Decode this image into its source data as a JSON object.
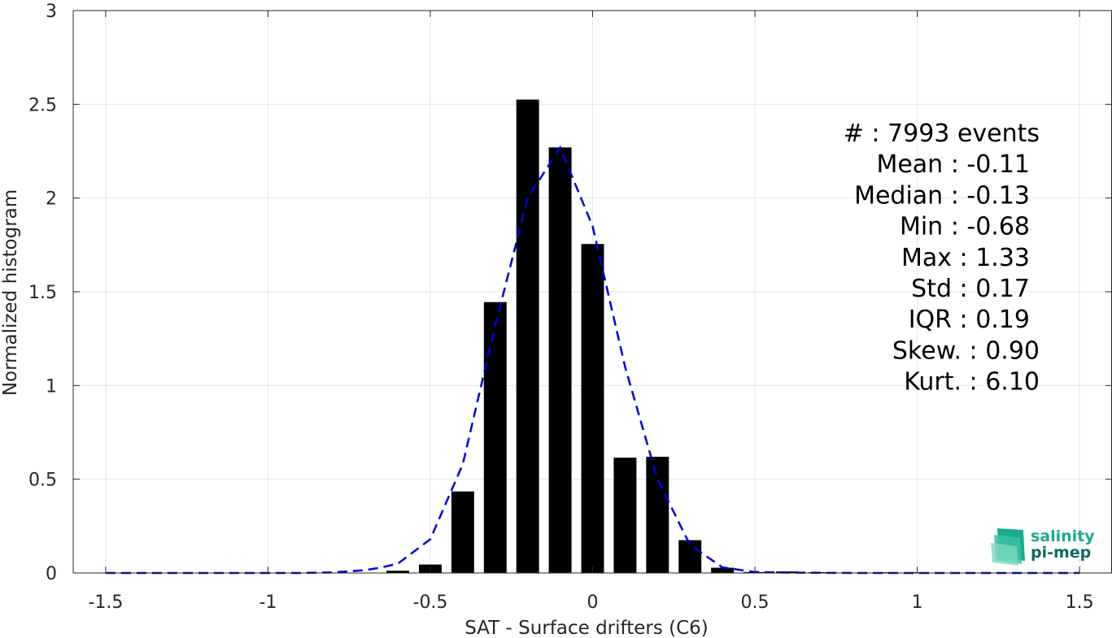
{
  "chart_data": {
    "type": "bar",
    "xlabel": "SAT - Surface drifters (C6)",
    "ylabel": "Normalized histogram",
    "xlim": [
      -1.6,
      1.6
    ],
    "ylim": [
      0,
      3
    ],
    "grid": true,
    "x_ticks": [
      -1.5,
      -1,
      -0.5,
      0,
      0.5,
      1,
      1.5
    ],
    "x_tick_labels": [
      "-1.5",
      "-1",
      "-0.5",
      "0",
      "0.5",
      "1",
      "1.5"
    ],
    "y_ticks": [
      0,
      0.5,
      1,
      1.5,
      2,
      2.5,
      3
    ],
    "y_tick_labels": [
      "0",
      "0.5",
      "1",
      "1.5",
      "2",
      "2.5",
      "3"
    ],
    "bar_width": 0.07,
    "series": [
      {
        "kind": "bar",
        "color": "#000000",
        "x": [
          -0.6,
          -0.5,
          -0.4,
          -0.3,
          -0.2,
          -0.1,
          0.0,
          0.1,
          0.2,
          0.3,
          0.4,
          0.5,
          0.6,
          0.7,
          0.8,
          0.9,
          1.0
        ],
        "values": [
          0.012,
          0.045,
          0.435,
          1.445,
          2.525,
          2.27,
          1.755,
          0.615,
          0.62,
          0.175,
          0.028,
          0.005,
          0.008,
          0.004,
          0.002,
          0.004,
          0.004
        ]
      },
      {
        "kind": "line",
        "style": "dashed",
        "color": "#0000dd",
        "x": [
          -1.5,
          -1.4,
          -1.3,
          -1.2,
          -1.1,
          -1.0,
          -0.9,
          -0.8,
          -0.7,
          -0.65,
          -0.6,
          -0.5,
          -0.4,
          -0.3,
          -0.2,
          -0.1,
          0.0,
          0.1,
          0.2,
          0.3,
          0.4,
          0.5,
          0.6,
          0.7,
          0.8,
          0.9,
          1.0,
          1.1,
          1.2,
          1.3,
          1.4,
          1.5
        ],
        "values": [
          0,
          0,
          0,
          0,
          0,
          0,
          0,
          0.003,
          0.015,
          0.03,
          0.05,
          0.18,
          0.58,
          1.32,
          2.0,
          2.27,
          1.85,
          1.1,
          0.5,
          0.15,
          0.03,
          0.005,
          0.002,
          0.001,
          0,
          0,
          0,
          0,
          0,
          0,
          0,
          0
        ]
      }
    ],
    "stats": [
      "#  : 7993 events",
      "Mean : -0.11",
      "Median : -0.13",
      "Min : -0.68",
      "Max : 1.33",
      "Std : 0.17",
      "IQR : 0.19",
      "Skew. : 0.90",
      "Kurt. : 6.10"
    ]
  },
  "logo": {
    "line1": "salinity",
    "line2": "pi-mep",
    "color1": "#1aab8e",
    "color2": "#0f6b61"
  }
}
